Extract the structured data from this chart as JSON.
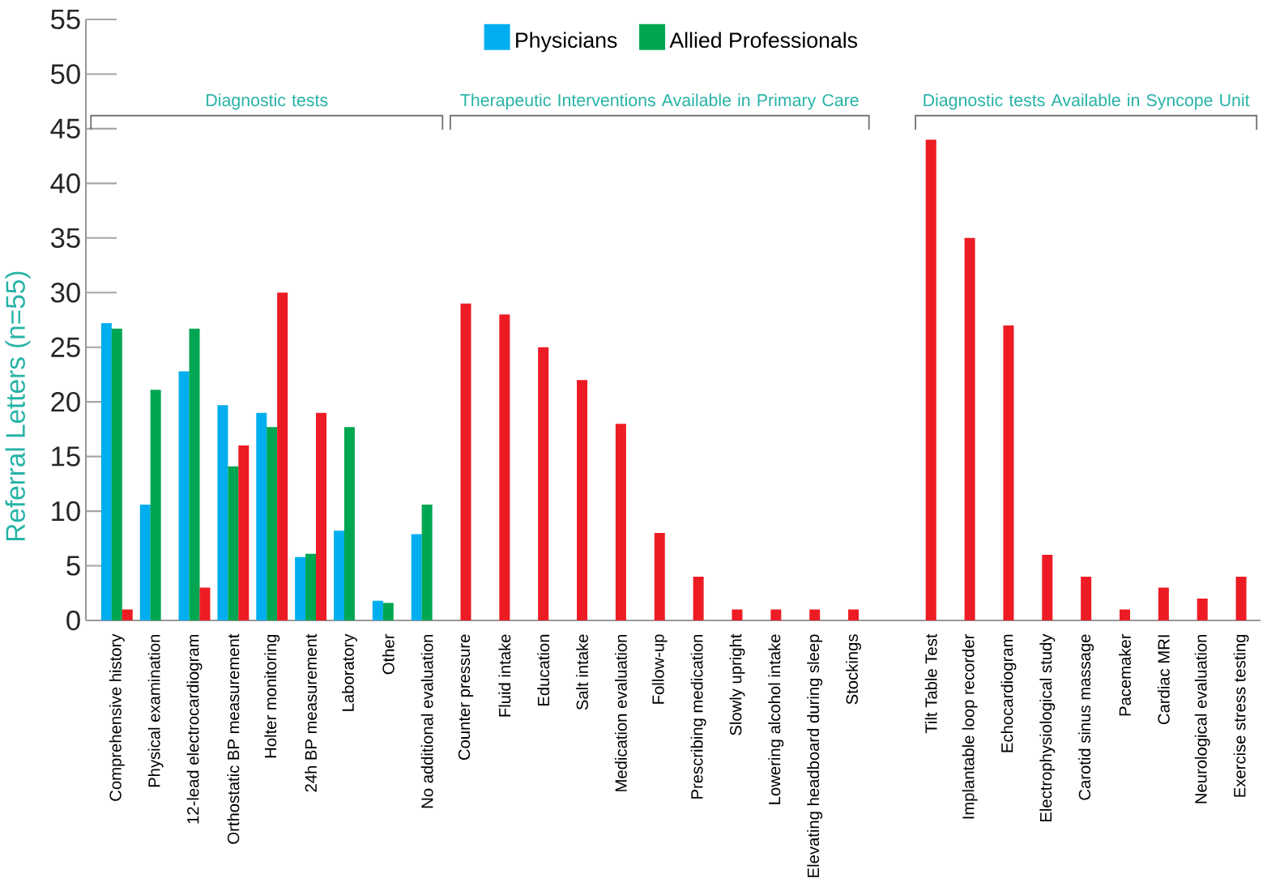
{
  "chart_data": {
    "type": "bar",
    "ylabel": "Referral Letters (n=55)",
    "categories": [
      "Comprehensive history",
      "Physical examination",
      "12-lead electrocardiogram",
      "Orthostatic BP measurement",
      "Holter monitoring",
      "24h BP measurement",
      "Laboratory",
      "Other",
      "No additional evaluation",
      "Counter pressure",
      "Fluid intake",
      "Education",
      "Salt intake",
      "Medication evaluation",
      "Follow-up",
      "Prescribing medication",
      "Slowly upright",
      "Lowering alcohol intake",
      "Elevating headboard during sleep",
      "Stockings",
      null,
      "Tilt Table Test",
      "Implantable loop recorder",
      "Echocardiogram",
      "Electrophysiological study",
      "Carotid sinus massage",
      "Pacemaker",
      "Cardiac MRI",
      "Neurological evaluation",
      "Exercise stress testing"
    ],
    "series": [
      {
        "name": "Physicians",
        "color": "#00aeef",
        "values": [
          27.2,
          10.6,
          22.8,
          19.7,
          19.0,
          5.8,
          8.2,
          1.8,
          7.9,
          null,
          null,
          null,
          null,
          null,
          null,
          null,
          null,
          null,
          null,
          null,
          null,
          null,
          null,
          null,
          null,
          null,
          null,
          null,
          null,
          null
        ]
      },
      {
        "name": "Allied Professionals",
        "color": "#00a651",
        "values": [
          26.7,
          21.1,
          26.7,
          14.1,
          17.7,
          6.1,
          17.7,
          1.6,
          10.6,
          null,
          null,
          null,
          null,
          null,
          null,
          null,
          null,
          null,
          null,
          null,
          null,
          null,
          null,
          null,
          null,
          null,
          null,
          null,
          null,
          null
        ]
      },
      {
        "color": "#ed1c24",
        "values": [
          1,
          null,
          3,
          16,
          30,
          19,
          null,
          null,
          null,
          29,
          28,
          25,
          22,
          18,
          8,
          4,
          1,
          1,
          1,
          1,
          null,
          44,
          35,
          27,
          6,
          4,
          1,
          3,
          2,
          4
        ]
      }
    ],
    "ylim": [
      0,
      55
    ],
    "yticks": [
      0,
      5,
      10,
      15,
      20,
      25,
      30,
      35,
      40,
      45,
      50,
      55
    ],
    "annotations": [
      "Diagnostic tests",
      "Therapeutic Interventions Available in Primary Care",
      "Diagnostic tests Available in Syncope Unit"
    ],
    "legend": "top"
  }
}
